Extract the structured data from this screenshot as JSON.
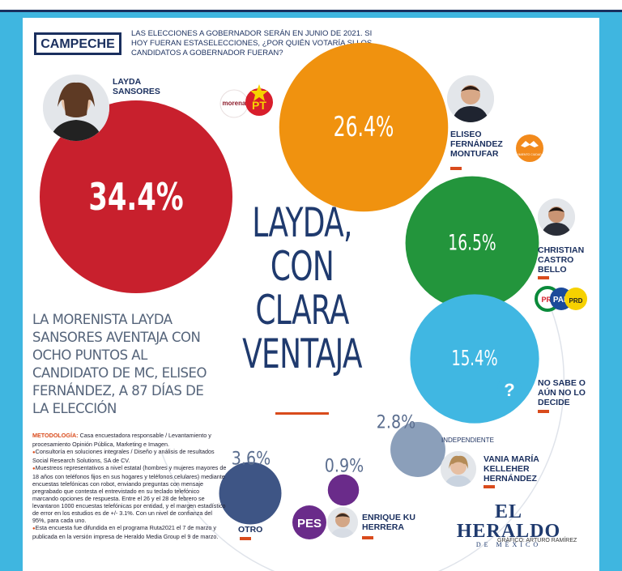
{
  "region": "CAMPECHE",
  "question": "LAS ELECCIONES A GOBERNADOR SERÁN EN JUNIO DE 2021. SI HOY FUERAN ESTASELECCIONES, ¿POR QUIÉN VOTARÍA SI LOS CANDIDATOS A GOBERNADOR FUERAN?",
  "headline": [
    "LAYDA,",
    "CON",
    "CLARA",
    "VENTAJA"
  ],
  "subheadline": "LA MORENISTA LAYDA SANSORES AVENTAJA CON OCHO PUNTOS AL CANDIDATO DE MC, ELISEO FERNÁNDEZ, A 87 DÍAS DE LA ELECCIÓN",
  "methodology": {
    "title": "METODOLOGÍA:",
    "lines": [
      "Casa encuestadora responsable / Levantamiento y procesamiento Opinión Pública, Marketing e Imagen.",
      "Consultoría en soluciones integrales / Diseño y análisis de resultados Social Research Solutions, SA de CV.",
      "Muestreos representativos a nivel estatal (hombres y mujeres mayores de 18 años con teléfonos fijos en sus hogares y teléfonos celulares) mediante encuestas telefónicas con robot, enviando preguntas con mensaje pregrabado que contesta el entrevistado en su teclado telefónico marcando opciones de respuesta. Entre el 26 y el 28 de febrero se levantaron 1000 encuestas telefónicas por entidad, y el margen estadístico de error en los estudios es de +/- 3.1%. Con un nivel de confianza del 95%, para cada uno.",
      "Esta encuesta fue difundida en el programa Ruta2021 el 7 de marzo y publicada en la versión impresa de Heraldo Media Group el 9 de marzo."
    ]
  },
  "independent_label": "INDEPENDIENTE",
  "brand": {
    "name": "EL HERALDO",
    "sub": "DE MÉXICO"
  },
  "credit": "GRÁFICO: ARTURO RAMÍREZ",
  "party_logos": {
    "morena": "morena",
    "pt": "PT",
    "pes": "PES",
    "mc": "MOVIMIENTO CIUDADANO",
    "pri": "PRI",
    "pan": "PAN",
    "prd": "PRD"
  },
  "colors": {
    "navy": "#1a2f5e",
    "accent": "#d94b1c",
    "cyan": "#3fb6e0"
  },
  "chart_data": {
    "type": "bubble",
    "title": "LAYDA, CON CLARA VENTAJA",
    "unit": "%",
    "series": [
      {
        "name": "LAYDA SANSORES",
        "value": 34.4,
        "label": "34.4%",
        "color": "#c8202d"
      },
      {
        "name": "ELISEO FERNÁNDEZ MONTUFAR",
        "value": 26.4,
        "label": "26.4%",
        "color": "#f0920f"
      },
      {
        "name": "CHRISTIAN CASTRO BELLO",
        "value": 16.5,
        "label": "16.5%",
        "color": "#23953c"
      },
      {
        "name": "NO SABE O AÚN NO LO DECIDE",
        "value": 15.4,
        "label": "15.4%",
        "color": "#40b7e2"
      },
      {
        "name": "VANIA MARÍA KELLEHER HERNÁNDEZ",
        "value": 2.8,
        "label": "2.8%",
        "color": "#8b9fba"
      },
      {
        "name": "ENRIQUE KU HERRERA",
        "value": 0.9,
        "label": "0.9%",
        "color": "#6a2b8a"
      },
      {
        "name": "OTRO",
        "value": 3.6,
        "label": "3.6%",
        "color": "#3e5585"
      }
    ]
  }
}
